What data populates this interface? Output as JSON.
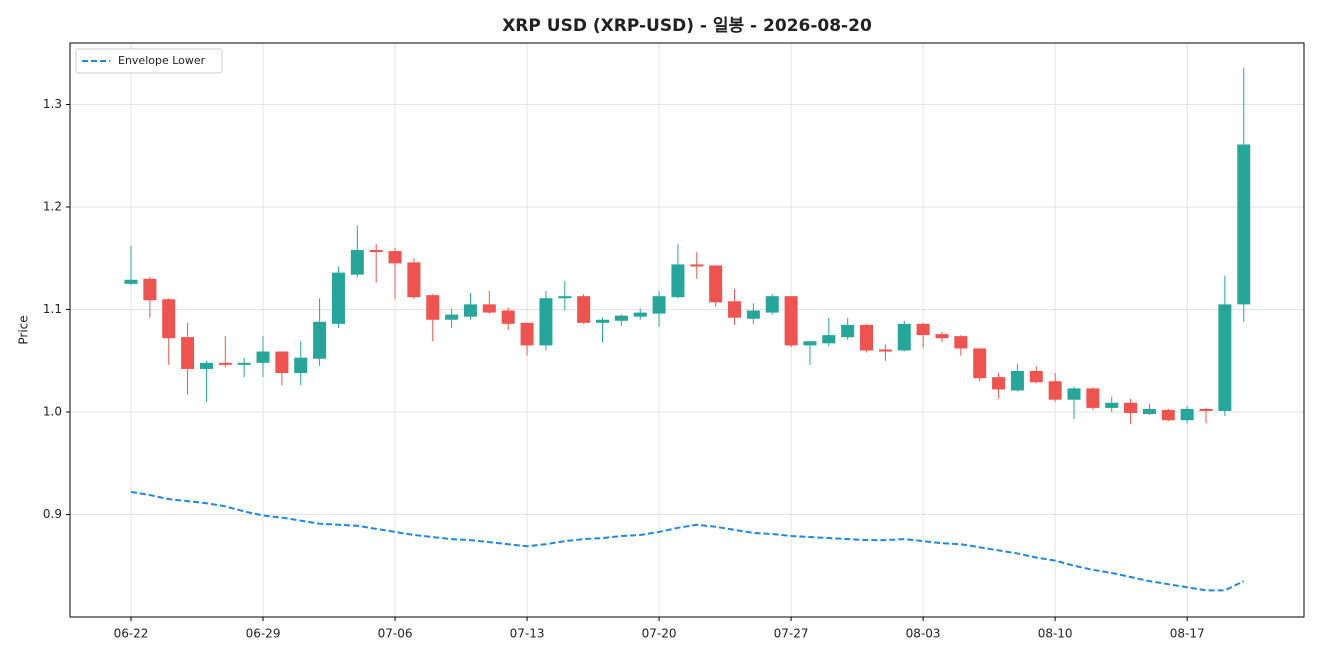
{
  "chart_data": {
    "type": "candlestick",
    "title": "XRP USD (XRP-USD) - 일봉 - 2026-08-20",
    "y_label": "Price",
    "x": [
      "06-22",
      "06-23",
      "06-24",
      "06-25",
      "06-26",
      "06-27",
      "06-28",
      "06-29",
      "06-30",
      "07-01",
      "07-02",
      "07-03",
      "07-04",
      "07-05",
      "07-06",
      "07-07",
      "07-08",
      "07-09",
      "07-10",
      "07-11",
      "07-12",
      "07-13",
      "07-14",
      "07-15",
      "07-16",
      "07-17",
      "07-18",
      "07-19",
      "07-20",
      "07-21",
      "07-22",
      "07-23",
      "07-24",
      "07-25",
      "07-26",
      "07-27",
      "07-28",
      "07-29",
      "07-30",
      "07-31",
      "08-01",
      "08-02",
      "08-03",
      "08-04",
      "08-05",
      "08-06",
      "08-07",
      "08-08",
      "08-09",
      "08-10",
      "08-11",
      "08-12",
      "08-13",
      "08-14",
      "08-15",
      "08-16",
      "08-17",
      "08-18",
      "08-19",
      "08-20"
    ],
    "xticks": [
      "06-22",
      "06-29",
      "07-06",
      "07-13",
      "07-20",
      "07-27",
      "08-03",
      "08-10",
      "08-17"
    ],
    "open": [
      1.125,
      1.13,
      1.11,
      1.073,
      1.042,
      1.048,
      1.046,
      1.048,
      1.059,
      1.038,
      1.052,
      1.086,
      1.134,
      1.158,
      1.157,
      1.146,
      1.114,
      1.09,
      1.093,
      1.105,
      1.099,
      1.087,
      1.065,
      1.111,
      1.113,
      1.087,
      1.089,
      1.093,
      1.096,
      1.112,
      1.144,
      1.143,
      1.108,
      1.091,
      1.097,
      1.113,
      1.065,
      1.067,
      1.073,
      1.085,
      1.061,
      1.06,
      1.086,
      1.076,
      1.074,
      1.062,
      1.034,
      1.021,
      1.04,
      1.03,
      1.012,
      1.023,
      1.004,
      1.009,
      0.998,
      1.002,
      0.992,
      1.003,
      1.001,
      1.105
    ],
    "high": [
      1.162,
      1.132,
      1.111,
      1.087,
      1.05,
      1.074,
      1.053,
      1.074,
      1.059,
      1.069,
      1.111,
      1.142,
      1.182,
      1.164,
      1.16,
      1.15,
      1.115,
      1.101,
      1.116,
      1.118,
      1.102,
      1.087,
      1.118,
      1.128,
      1.115,
      1.092,
      1.095,
      1.101,
      1.118,
      1.164,
      1.156,
      1.143,
      1.12,
      1.106,
      1.115,
      1.113,
      1.069,
      1.092,
      1.092,
      1.086,
      1.066,
      1.089,
      1.087,
      1.078,
      1.075,
      1.062,
      1.038,
      1.047,
      1.045,
      1.038,
      1.025,
      1.024,
      1.015,
      1.013,
      1.008,
      1.003,
      1.006,
      1.004,
      1.133,
      1.336
    ],
    "low": [
      1.124,
      1.092,
      1.046,
      1.017,
      1.01,
      1.044,
      1.034,
      1.034,
      1.026,
      1.026,
      1.045,
      1.082,
      1.131,
      1.126,
      1.11,
      1.11,
      1.069,
      1.082,
      1.09,
      1.096,
      1.08,
      1.055,
      1.06,
      1.099,
      1.086,
      1.068,
      1.084,
      1.09,
      1.083,
      1.111,
      1.13,
      1.103,
      1.085,
      1.086,
      1.095,
      1.063,
      1.046,
      1.064,
      1.07,
      1.058,
      1.05,
      1.059,
      1.063,
      1.068,
      1.055,
      1.03,
      1.013,
      1.02,
      1.028,
      1.01,
      0.993,
      1.002,
      1.0,
      0.988,
      0.997,
      0.991,
      0.989,
      0.989,
      0.996,
      1.088
    ],
    "close": [
      1.129,
      1.109,
      1.072,
      1.042,
      1.048,
      1.046,
      1.048,
      1.059,
      1.038,
      1.053,
      1.088,
      1.136,
      1.158,
      1.156,
      1.145,
      1.112,
      1.09,
      1.095,
      1.105,
      1.097,
      1.086,
      1.065,
      1.111,
      1.113,
      1.087,
      1.09,
      1.094,
      1.097,
      1.113,
      1.144,
      1.142,
      1.107,
      1.092,
      1.099,
      1.113,
      1.065,
      1.069,
      1.075,
      1.085,
      1.06,
      1.059,
      1.086,
      1.075,
      1.072,
      1.062,
      1.033,
      1.022,
      1.04,
      1.029,
      1.012,
      1.023,
      1.004,
      1.009,
      0.999,
      1.003,
      0.992,
      1.003,
      1.001,
      1.105,
      1.261
    ],
    "up_color": "#26a69a",
    "down_color": "#ef5350",
    "series": [
      {
        "name": "Envelope Lower",
        "color": "#1e88e5",
        "style": "dashed",
        "values": [
          0.922,
          0.919,
          0.915,
          0.913,
          0.911,
          0.908,
          0.903,
          0.899,
          0.897,
          0.894,
          0.891,
          0.89,
          0.889,
          0.886,
          0.883,
          0.88,
          0.878,
          0.876,
          0.875,
          0.873,
          0.871,
          0.869,
          0.871,
          0.874,
          0.876,
          0.877,
          0.879,
          0.88,
          0.883,
          0.887,
          0.89,
          0.888,
          0.885,
          0.882,
          0.881,
          0.879,
          0.878,
          0.877,
          0.876,
          0.875,
          0.875,
          0.876,
          0.874,
          0.872,
          0.871,
          0.868,
          0.865,
          0.862,
          0.858,
          0.855,
          0.85,
          0.846,
          0.843,
          0.839,
          0.835,
          0.832,
          0.829,
          0.826,
          0.826,
          0.835
        ]
      }
    ],
    "ylim": [
      0.8,
      1.36
    ],
    "yticks": [
      0.9,
      {
        "value": 1,
        "label": "1.0"
      },
      1.1,
      1.2,
      1.3
    ],
    "grid": true,
    "legend": "upper left"
  }
}
